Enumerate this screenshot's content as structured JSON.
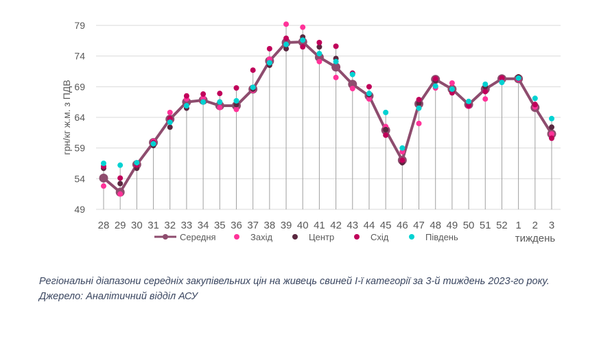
{
  "chart_data": {
    "type": "line",
    "title": "",
    "xlabel": "тиждень",
    "ylabel": "грн/кг ж.м. з ПДВ",
    "ylim": [
      49,
      79
    ],
    "yticks": [
      49,
      54,
      59,
      64,
      69,
      74,
      79
    ],
    "grid": true,
    "legend_position": "bottom",
    "categories": [
      "28",
      "29",
      "30",
      "31",
      "32",
      "33",
      "34",
      "35",
      "36",
      "37",
      "38",
      "39",
      "40",
      "41",
      "42",
      "43",
      "44",
      "45",
      "46",
      "47",
      "48",
      "49",
      "50",
      "51",
      "52",
      "1",
      "2",
      "3"
    ],
    "series": [
      {
        "name": "Середня",
        "color": "#8e4c6e",
        "kind": "line",
        "values": [
          54.1,
          51.8,
          56.3,
          59.9,
          63.7,
          66.5,
          66.8,
          65.9,
          65.9,
          68.6,
          73.2,
          76.2,
          76.3,
          73.8,
          72.2,
          69.4,
          67.5,
          61.9,
          57.0,
          66.2,
          70.2,
          68.6,
          66.1,
          68.6,
          70.3,
          70.3,
          65.6,
          61.3
        ]
      },
      {
        "name": "Захід",
        "color": "#ff3399",
        "kind": "dot",
        "values": [
          52.8,
          51.5,
          56.0,
          60.1,
          64.8,
          67.0,
          67.2,
          65.6,
          65.3,
          68.4,
          73.5,
          79.2,
          78.7,
          73.1,
          70.5,
          68.7,
          67.0,
          62.5,
          58.4,
          63.0,
          68.8,
          69.6,
          65.8,
          67.0,
          70.2,
          70.2,
          65.7,
          61.3
        ]
      },
      {
        "name": "Центр",
        "color": "#5a2840",
        "kind": "dot",
        "values": [
          55.7,
          53.2,
          55.7,
          59.4,
          62.4,
          65.5,
          66.5,
          66.5,
          66.1,
          68.6,
          72.5,
          75.2,
          77.1,
          75.5,
          73.6,
          71.2,
          67.7,
          62.0,
          56.6,
          66.3,
          70.0,
          68.2,
          66.0,
          69.0,
          70.4,
          70.6,
          66.1,
          62.4
        ]
      },
      {
        "name": "Схід",
        "color": "#c0005a",
        "kind": "dot",
        "values": [
          56.0,
          54.1,
          56.2,
          59.9,
          63.8,
          67.5,
          67.8,
          67.9,
          68.8,
          71.7,
          75.2,
          76.9,
          75.5,
          76.2,
          75.6,
          71.2,
          69.0,
          61.1,
          57.0,
          66.9,
          70.3,
          68.0,
          65.9,
          68.2,
          70.4,
          70.3,
          66.1,
          60.6
        ]
      },
      {
        "name": "Південь",
        "color": "#00d2d2",
        "kind": "dot",
        "values": [
          56.5,
          56.2,
          56.6,
          59.7,
          63.2,
          65.9,
          66.5,
          66.5,
          66.7,
          68.9,
          72.9,
          75.9,
          76.6,
          74.4,
          73.1,
          71.0,
          67.9,
          64.8,
          59.0,
          65.5,
          69.1,
          68.6,
          66.6,
          69.4,
          69.7,
          70.4,
          67.1,
          63.8
        ]
      }
    ]
  },
  "caption": {
    "line1": "Регіональні діапазони середніх закупівельних цін на живець свиней І-ї категорії за 3-й тиждень 2023-го року.",
    "line2": "Джерело: Аналітичний відділ АСУ"
  }
}
